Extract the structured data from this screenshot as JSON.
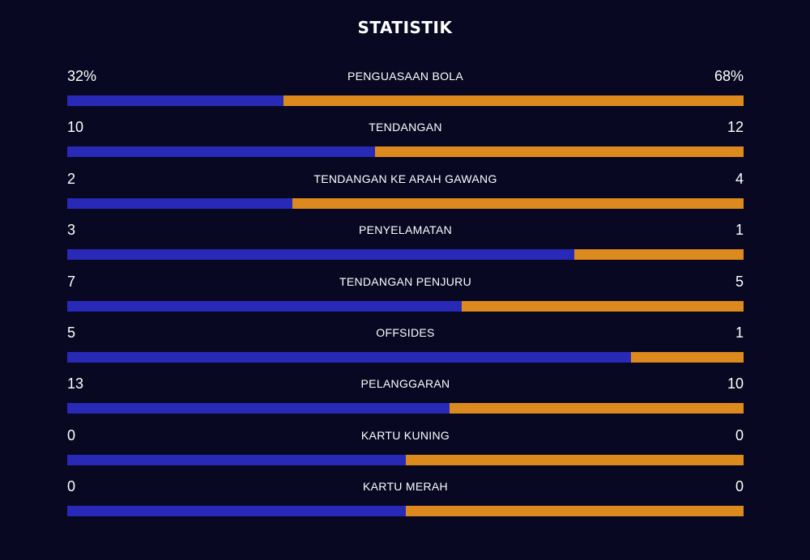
{
  "title": "STATISTIK",
  "colors": {
    "background": "#080822",
    "home": "#2929b8",
    "away": "#dc8a1e"
  },
  "stats": [
    {
      "label": "PENGUASAAN BOLA",
      "home": "32%",
      "away": "68%",
      "home_share": 0.32
    },
    {
      "label": "TENDANGAN",
      "home": "10",
      "away": "12",
      "home_share": 0.4545
    },
    {
      "label": "TENDANGAN KE ARAH GAWANG",
      "home": "2",
      "away": "4",
      "home_share": 0.3333
    },
    {
      "label": "PENYELAMATAN",
      "home": "3",
      "away": "1",
      "home_share": 0.75
    },
    {
      "label": "TENDANGAN PENJURU",
      "home": "7",
      "away": "5",
      "home_share": 0.5833
    },
    {
      "label": "OFFSIDES",
      "home": "5",
      "away": "1",
      "home_share": 0.8333
    },
    {
      "label": "PELANGGARAN",
      "home": "13",
      "away": "10",
      "home_share": 0.5652
    },
    {
      "label": "KARTU KUNING",
      "home": "0",
      "away": "0",
      "home_share": 0.5
    },
    {
      "label": "KARTU MERAH",
      "home": "0",
      "away": "0",
      "home_share": 0.5
    }
  ]
}
